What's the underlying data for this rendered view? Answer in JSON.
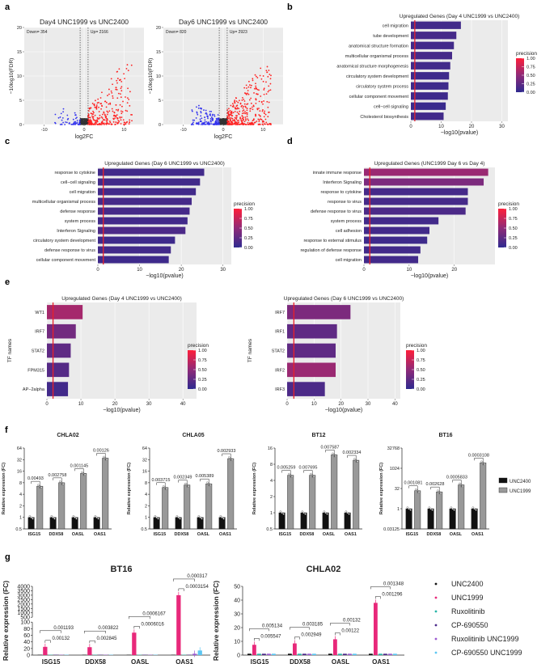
{
  "panel_labels": [
    "a",
    "b",
    "c",
    "d",
    "e",
    "f",
    "g"
  ],
  "chart_data": [
    {
      "id": "a1",
      "type": "scatter",
      "title": "Day4 UNC1999 vs UNC2400",
      "xlabel": "log2FC",
      "ylabel": "−10log10(FDR)",
      "xlim": [
        -15,
        15
      ],
      "ylim": [
        0,
        20
      ],
      "xticks": [
        -10,
        0,
        10
      ],
      "yticks": [
        0,
        5,
        10,
        15,
        20
      ],
      "down_label": "Down= 354",
      "up_label": "Up= 2166",
      "down_count": 354,
      "up_count": 2166,
      "thresholds_x": [
        -1,
        1
      ],
      "colors": {
        "down": "#3333ee",
        "up": "#ff2222",
        "ns": "#333333"
      }
    },
    {
      "id": "a2",
      "type": "scatter",
      "title": "Day6 UNC1999 vs UNC2400",
      "xlabel": "log2FC",
      "ylabel": "−10log10(FDR)",
      "xlim": [
        -15,
        15
      ],
      "ylim": [
        0,
        20
      ],
      "xticks": [
        -10,
        0,
        10
      ],
      "yticks": [
        0,
        5,
        10,
        15,
        20
      ],
      "down_label": "Down= 820",
      "up_label": "Up= 2923",
      "down_count": 820,
      "up_count": 2923,
      "thresholds_x": [
        -1,
        1
      ],
      "colors": {
        "down": "#3333ee",
        "up": "#ff2222",
        "ns": "#333333"
      }
    },
    {
      "id": "b",
      "type": "bar",
      "title": "Upregulated Genes (Day 4 UNC1999 vs UNC2400)",
      "xlabel": "−log10(pvalue)",
      "xlim": [
        0,
        32
      ],
      "xticks": [
        0,
        10,
        20,
        30
      ],
      "threshold": 1.3,
      "legend_title": "precision",
      "categories": [
        "cell migration",
        "tube development",
        "anatomical structure formation",
        "multicellular organismal process",
        "anatomical structure morphogenesis",
        "circulatory system development",
        "circulatory system process",
        "cellular component movement",
        "cell−cell signaling",
        "Cholesterol biosynthesis"
      ],
      "values": [
        16.5,
        15.0,
        14.2,
        13.6,
        13.0,
        12.6,
        12.4,
        12.2,
        11.5,
        10.8
      ],
      "precision": [
        0.1,
        0.12,
        0.1,
        0.12,
        0.1,
        0.08,
        0.08,
        0.08,
        0.05,
        0.1
      ]
    },
    {
      "id": "c",
      "type": "bar",
      "title": "Upregulated Genes (Day 6 UNC1999 vs UNC2400)",
      "xlabel": "−log10(pvalue)",
      "xlim": [
        0,
        32
      ],
      "xticks": [
        0,
        10,
        20,
        30
      ],
      "threshold": 1.3,
      "legend_title": "precision",
      "categories": [
        "response to cytokine",
        "cell−cell signaling",
        "cell migration",
        "multicellular organismal process",
        "defense response",
        "system process",
        "Interferon Signaling",
        "circulatory system development",
        "defense response to virus",
        "cellular component movement"
      ],
      "values": [
        25.5,
        24.5,
        23.5,
        22.5,
        22.0,
        21.5,
        21.0,
        18.5,
        17.5,
        17.0
      ],
      "precision": [
        0.1,
        0.1,
        0.1,
        0.12,
        0.12,
        0.1,
        0.15,
        0.08,
        0.1,
        0.08
      ]
    },
    {
      "id": "d",
      "type": "bar",
      "title": "Upregulated Genes (UNC1999 Day 6 vs Day 4)",
      "xlabel": "−log10(pvalue)",
      "xlim": [
        0,
        29
      ],
      "xticks": [
        0,
        10,
        20
      ],
      "threshold": 1.3,
      "legend_title": "precision",
      "categories": [
        "innate immune response",
        "Interferon Signaling",
        "response to cytokine",
        "response to virus",
        "defense response to virus",
        "system process",
        "cell adhesion",
        "response to external stimulus",
        "regulation of defense response",
        "cell migration"
      ],
      "values": [
        27.5,
        26.5,
        23.0,
        23.0,
        22.5,
        16.5,
        14.5,
        14.0,
        12.5,
        12.0
      ],
      "precision": [
        0.55,
        0.4,
        0.12,
        0.12,
        0.15,
        0.1,
        0.1,
        0.08,
        0.1,
        0.1
      ]
    },
    {
      "id": "e1",
      "type": "bar",
      "title": "Upregulated Genes (Day 4 UNC1999 vs UNC2400)",
      "xlabel": "−log10(pvalue)",
      "ylabel": "TF names",
      "xlim": [
        0,
        44
      ],
      "xticks": [
        0,
        10,
        20,
        30,
        40
      ],
      "threshold": 1.8,
      "legend_title": "precision",
      "categories": [
        "WT1",
        "IRF7",
        "STAT2",
        "FPM315",
        "AP−2alpha"
      ],
      "values": [
        10.5,
        8.5,
        7.0,
        6.5,
        6.2
      ],
      "precision": [
        0.6,
        0.35,
        0.25,
        0.2,
        0.1
      ]
    },
    {
      "id": "e2",
      "type": "bar",
      "title": "Upregulated Genes (Day 6 UNC1999 vs UNC2400)",
      "xlabel": "−log10(pvalue)",
      "ylabel": "TF names",
      "xlim": [
        0,
        42
      ],
      "xticks": [
        0,
        10,
        20,
        30,
        40
      ],
      "threshold": 2.5,
      "legend_title": "precision",
      "categories": [
        "IRF7",
        "IRF1",
        "STAT2",
        "IRF2",
        "IRF3"
      ],
      "values": [
        23.5,
        18.5,
        18.0,
        18.0,
        14.0
      ],
      "precision": [
        0.4,
        0.25,
        0.25,
        0.55,
        0.15
      ]
    },
    {
      "id": "f1",
      "type": "bar",
      "title": "CHLA02",
      "ylabel": "Relative expression (FC)",
      "categories": [
        "ISG15",
        "DDX58",
        "OASL",
        "OAS1"
      ],
      "series": [
        {
          "name": "UNC2400",
          "values": [
            1,
            1,
            1,
            1
          ]
        },
        {
          "name": "UNC1999",
          "values": [
            6.5,
            8,
            14,
            35
          ]
        }
      ],
      "log_base": 2,
      "yticks": [
        "0.5",
        "1",
        "2",
        "4",
        "8",
        "16",
        "32",
        "64"
      ],
      "pvalues": [
        "0.00493",
        "0.002758",
        "0.001145",
        "0.00126"
      ]
    },
    {
      "id": "f2",
      "type": "bar",
      "title": "CHLA05",
      "ylabel": "Relative expression (FC)",
      "categories": [
        "ISG15",
        "DDX58",
        "OASL",
        "OAS1"
      ],
      "series": [
        {
          "name": "UNC2400",
          "values": [
            1,
            1,
            1,
            1
          ]
        },
        {
          "name": "UNC1999",
          "values": [
            6,
            7,
            7.5,
            34
          ]
        }
      ],
      "log_base": 2,
      "yticks": [
        "0.5",
        "1",
        "2",
        "4",
        "8",
        "16",
        "32",
        "64"
      ],
      "pvalues": [
        "0.003715",
        "0.002349",
        "0.005389",
        "0.002933"
      ]
    },
    {
      "id": "f3",
      "type": "bar",
      "title": "BT12",
      "ylabel": "Relative expression (FC)",
      "categories": [
        "ISG15",
        "DDX58",
        "OASL",
        "OAS1"
      ],
      "series": [
        {
          "name": "UNC2400",
          "values": [
            1,
            1,
            1,
            1
          ]
        },
        {
          "name": "UNC1999",
          "values": [
            5,
            5,
            12,
            9.5
          ]
        }
      ],
      "log_base": 2,
      "yticks": [
        "0.5",
        "1",
        "2",
        "4",
        "8",
        "16"
      ],
      "pvalues": [
        "0.005259",
        "0.007695",
        "0.007587",
        "0.002334"
      ]
    },
    {
      "id": "f4",
      "type": "bar",
      "title": "BT16",
      "ylabel": "Relative expression (FC)",
      "categories": [
        "ISG15",
        "DDX58",
        "OASL",
        "OAS1"
      ],
      "series": [
        {
          "name": "UNC2400",
          "values": [
            1,
            1,
            1,
            1
          ]
        },
        {
          "name": "UNC1999",
          "values": [
            22,
            18,
            60,
            2600
          ]
        }
      ],
      "log_base": 2,
      "yticks": [
        "0.03125",
        "1",
        "32",
        "1024",
        "32768"
      ],
      "pvalues": [
        "0.001081",
        "0.002628",
        "0.0005833",
        "0.0003108"
      ]
    },
    {
      "id": "g1",
      "type": "bar",
      "title": "BT16",
      "ylabel": "Relative expression (FC)",
      "categories": [
        "ISG15",
        "DDX58",
        "OASL",
        "OAS1"
      ],
      "series": [
        {
          "name": "UNC2400",
          "values": [
            1,
            1,
            1,
            1
          ]
        },
        {
          "name": "UNC1999",
          "values": [
            25,
            24,
            68,
            3000
          ]
        },
        {
          "name": "Ruxolitinib",
          "values": [
            1,
            1,
            1,
            1
          ]
        },
        {
          "name": "CP-690550",
          "values": [
            1,
            1,
            1,
            1
          ]
        },
        {
          "name": "Ruxolitinib UNC1999",
          "values": [
            1,
            1,
            1,
            4
          ]
        },
        {
          "name": "CP-690550 UNC1999",
          "values": [
            1,
            1,
            1,
            14
          ]
        }
      ],
      "ylim_lower": [
        0,
        100
      ],
      "ylim_upper": [
        500,
        4000
      ],
      "yticks_lower": [
        0,
        20,
        40,
        60,
        80,
        100
      ],
      "yticks_upper": [
        500,
        1000,
        1500,
        2000,
        2500,
        3000,
        3500,
        4000
      ],
      "pvalues": [
        {
          "outer": "0.001193",
          "inner": "0.00132"
        },
        {
          "outer": "0.003822",
          "inner": "0.002845"
        },
        {
          "outer": "0.0006167",
          "inner": "0.0006016"
        },
        {
          "outer": "0.000317",
          "inner": "0.0003154"
        }
      ]
    },
    {
      "id": "g2",
      "type": "bar",
      "title": "CHLA02",
      "ylabel": "Relative expression (FC)",
      "categories": [
        "ISG15",
        "DDX58",
        "OASL",
        "OAS1"
      ],
      "series": [
        {
          "name": "UNC2400",
          "values": [
            1,
            1,
            1,
            1
          ]
        },
        {
          "name": "UNC1999",
          "values": [
            7.5,
            8.5,
            11.5,
            38
          ]
        },
        {
          "name": "Ruxolitinib",
          "values": [
            1,
            1,
            1,
            1
          ]
        },
        {
          "name": "CP-690550",
          "values": [
            1,
            1,
            1,
            1
          ]
        },
        {
          "name": "Ruxolitinib UNC1999",
          "values": [
            1,
            1,
            1,
            1
          ]
        },
        {
          "name": "CP-690550 UNC1999",
          "values": [
            1,
            1,
            1,
            1
          ]
        }
      ],
      "ylim": [
        0,
        50
      ],
      "yticks": [
        0,
        10,
        20,
        30,
        40,
        50
      ],
      "pvalues": [
        {
          "outer": "0.005134",
          "inner": "0.005547"
        },
        {
          "outer": "0.003185",
          "inner": "0.002949"
        },
        {
          "outer": "0.00132",
          "inner": "0.00122"
        },
        {
          "outer": "0.001348",
          "inner": "0.001296"
        }
      ]
    }
  ],
  "legend_f": [
    {
      "name": "UNC2400",
      "color": "#111111"
    },
    {
      "name": "UNC1999",
      "color": "#999999"
    }
  ],
  "legend_g": [
    {
      "name": "UNC2400",
      "color": "#111111"
    },
    {
      "name": "UNC1999",
      "color": "#e8287a"
    },
    {
      "name": "Ruxolitinib",
      "color": "#27b5a8"
    },
    {
      "name": "CP-690550",
      "color": "#4b2a8a"
    },
    {
      "name": "Ruxolitinib UNC1999",
      "color": "#9b59d0"
    },
    {
      "name": "CP-690550 UNC1999",
      "color": "#5cc6f2"
    }
  ],
  "precision_legend_ticks": [
    "1.00",
    "0.75",
    "0.50",
    "0.25",
    "0.00"
  ]
}
